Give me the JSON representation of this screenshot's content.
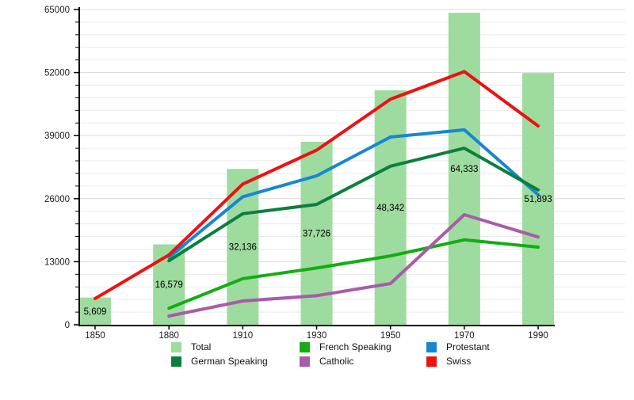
{
  "colors": {
    "total": "#9EDB9E",
    "french_speaking": "#12AE12",
    "german_speaking": "#0C7F3F",
    "protestant": "#1787D2",
    "catholic": "#A85CA8",
    "swiss": "#EE1111",
    "axis": "#000000",
    "grid_minor": "#E9E9E9",
    "grid_major": "#D8D8D8",
    "tick_text": "#1A1A1A",
    "bar_label_text": "#000000"
  },
  "chart_data": {
    "type": "bar+line",
    "title": "",
    "xlabel": "",
    "ylabel": "",
    "grid": true,
    "legend_position": "bottom",
    "categories": [
      "1850",
      "1880",
      "1910",
      "1930",
      "1950",
      "1970",
      "1990"
    ],
    "bars": {
      "name": "Total",
      "color_key": "total",
      "values": [
        5609,
        16579,
        32136,
        37726,
        48342,
        64333,
        51893
      ],
      "labels": [
        "5,609",
        "16,579",
        "32,136",
        "37,726",
        "48,342",
        "64,333",
        "51,893"
      ]
    },
    "series": [
      {
        "name": "French Speaking",
        "color_key": "french_speaking",
        "values": [
          null,
          3400,
          9500,
          11700,
          14200,
          17500,
          16000
        ]
      },
      {
        "name": "Catholic",
        "color_key": "catholic",
        "values": [
          null,
          1800,
          4900,
          6000,
          8500,
          22700,
          18100
        ]
      },
      {
        "name": "Protestant",
        "color_key": "protestant",
        "values": [
          null,
          13900,
          26400,
          30700,
          38700,
          40200,
          26800
        ]
      },
      {
        "name": "German Speaking",
        "color_key": "german_speaking",
        "values": [
          null,
          13200,
          22900,
          24800,
          32700,
          36400,
          27800
        ]
      },
      {
        "name": "Swiss",
        "color_key": "swiss",
        "values": [
          5400,
          14400,
          29000,
          36000,
          46500,
          52200,
          41000
        ]
      }
    ],
    "ylim": [
      0,
      65000
    ],
    "yticks_major": [
      0,
      13000,
      26000,
      39000,
      52000,
      65000
    ],
    "ytick_labels": [
      "0",
      "13000",
      "26000",
      "39000",
      "52000",
      "65000"
    ],
    "ytick_minor_step": 2600,
    "legend": [
      {
        "label": "Total",
        "color_key": "total"
      },
      {
        "label": "French Speaking",
        "color_key": "french_speaking"
      },
      {
        "label": "Protestant",
        "color_key": "protestant"
      },
      {
        "label": "German Speaking",
        "color_key": "german_speaking"
      },
      {
        "label": "Catholic",
        "color_key": "catholic"
      },
      {
        "label": "Swiss",
        "color_key": "swiss"
      }
    ]
  }
}
